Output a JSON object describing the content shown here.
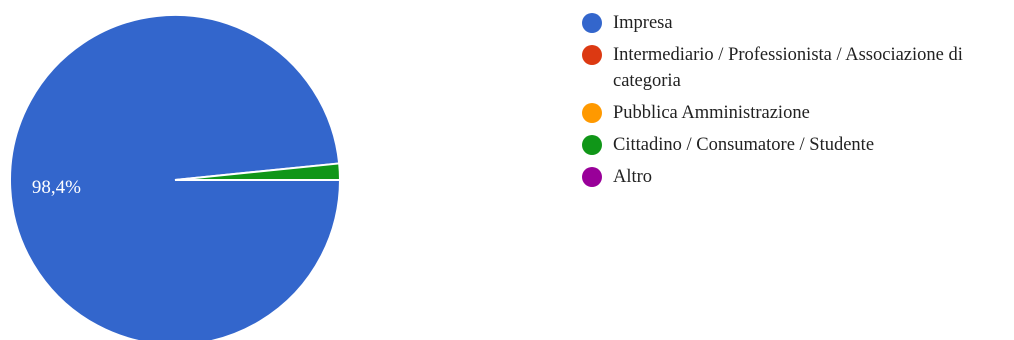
{
  "chart_data": {
    "type": "pie",
    "categories": [
      "Impresa",
      "Intermediario / Professionista / Associazione di categoria",
      "Pubblica Amministrazione",
      "Cittadino / Consumatore / Studente",
      "Altro"
    ],
    "values": [
      98.4,
      0,
      0,
      1.6,
      0
    ],
    "colors": [
      "#3366CC",
      "#DC3912",
      "#FF9900",
      "#109618",
      "#990099"
    ],
    "data_labels": [
      "98,4%",
      "",
      "",
      "",
      ""
    ],
    "legend_position": "right"
  },
  "legend": {
    "items": [
      {
        "label": "Impresa",
        "color": "#3366CC"
      },
      {
        "label": "Intermediario / Professionista / Associazione di categoria",
        "color": "#DC3912"
      },
      {
        "label": "Pubblica Amministrazione",
        "color": "#FF9900"
      },
      {
        "label": "Cittadino / Consumatore / Studente",
        "color": "#109618"
      },
      {
        "label": "Altro",
        "color": "#990099"
      }
    ]
  }
}
